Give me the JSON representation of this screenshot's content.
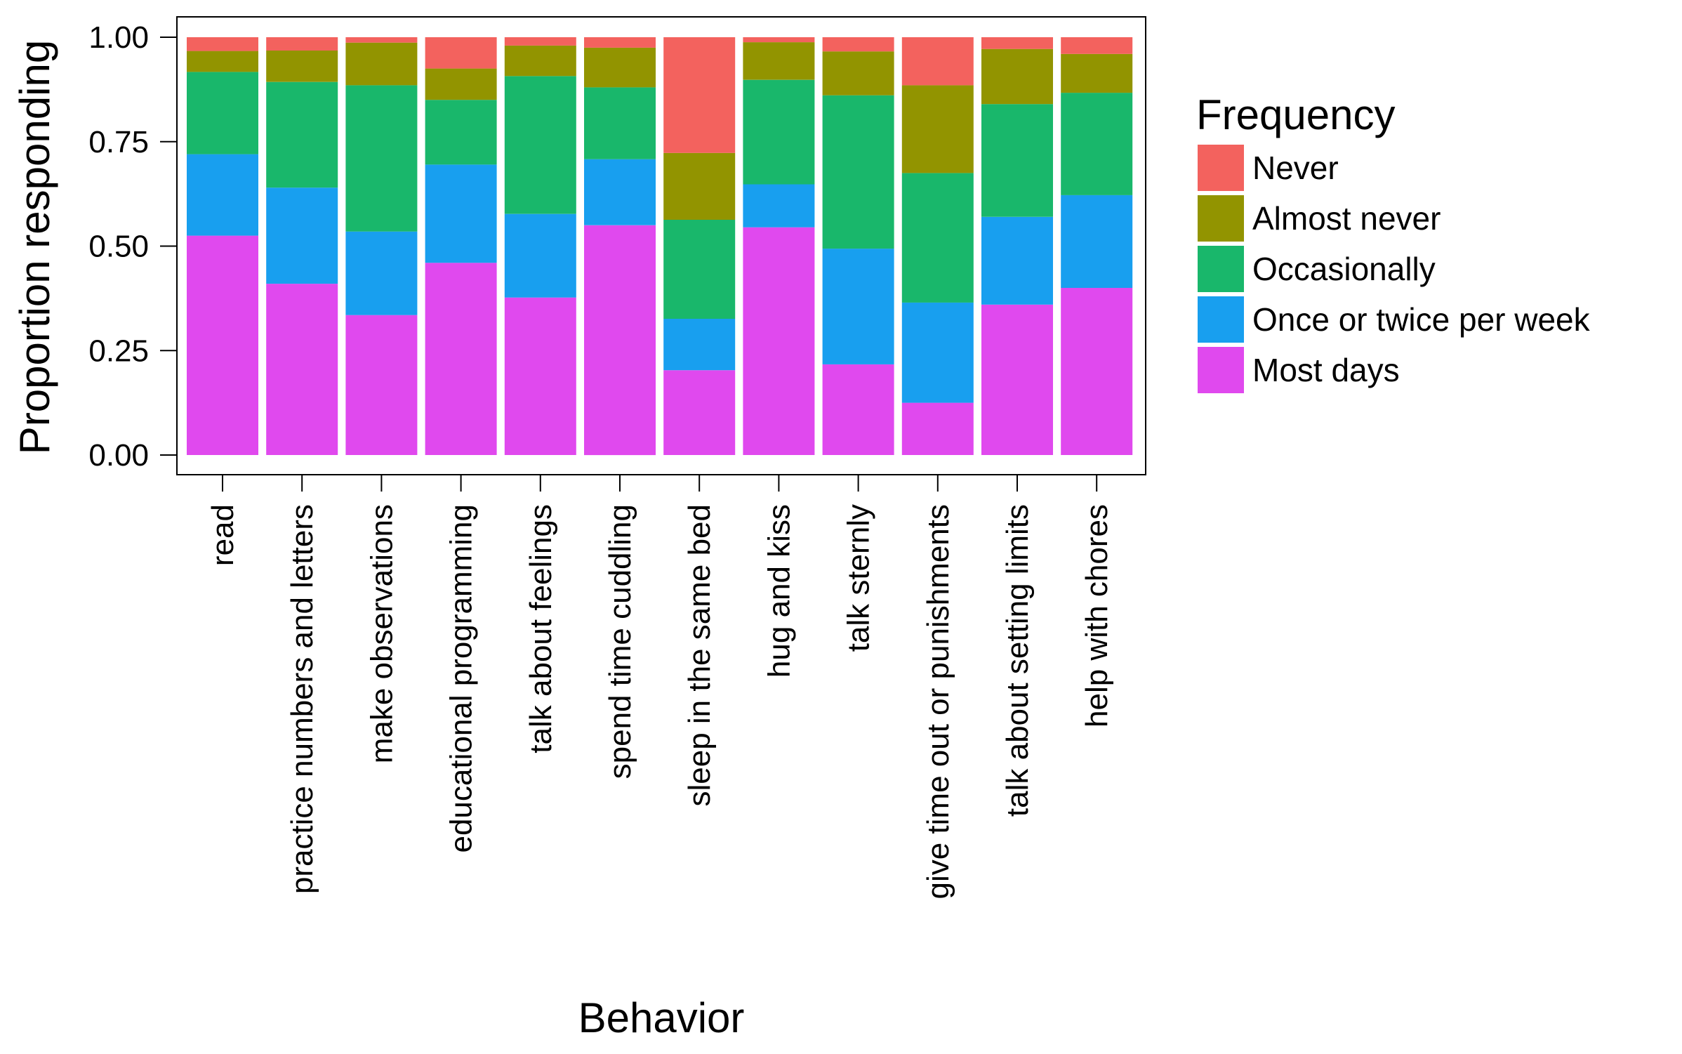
{
  "chart_data": {
    "type": "bar",
    "stacked": true,
    "normalized": true,
    "title": "",
    "xlabel": "Behavior",
    "ylabel": "Proportion responding",
    "ylim": [
      0,
      1
    ],
    "yticks": [
      "0.00",
      "0.25",
      "0.50",
      "0.75",
      "1.00"
    ],
    "ytick_values": [
      0,
      0.25,
      0.5,
      0.75,
      1.0
    ],
    "grid": false,
    "legend": {
      "title": "Frequency",
      "position": "right"
    },
    "categories": [
      "read",
      "practice numbers and letters",
      "make observations",
      "educational programming",
      "talk about feelings",
      "spend time cuddling",
      "sleep in the same bed",
      "hug and kiss",
      "talk sternly",
      "give time out or punishments",
      "talk about setting limits",
      "help with chores"
    ],
    "series": [
      {
        "name": "Most days",
        "color": "#E049EE",
        "values": [
          0.525,
          0.41,
          0.335,
          0.46,
          0.377,
          0.55,
          0.203,
          0.545,
          0.217,
          0.125,
          0.36,
          0.4
        ]
      },
      {
        "name": "Once or twice per week",
        "color": "#189FEF",
        "values": [
          0.195,
          0.23,
          0.2,
          0.235,
          0.2,
          0.158,
          0.123,
          0.103,
          0.277,
          0.24,
          0.21,
          0.222
        ]
      },
      {
        "name": "Occasionally",
        "color": "#19B76B",
        "values": [
          0.197,
          0.253,
          0.35,
          0.155,
          0.33,
          0.172,
          0.237,
          0.25,
          0.367,
          0.31,
          0.27,
          0.245
        ]
      },
      {
        "name": "Almost never",
        "color": "#929400",
        "values": [
          0.05,
          0.075,
          0.102,
          0.075,
          0.073,
          0.095,
          0.16,
          0.09,
          0.105,
          0.21,
          0.132,
          0.093
        ]
      },
      {
        "name": "Never",
        "color": "#F3625E",
        "values": [
          0.033,
          0.032,
          0.013,
          0.075,
          0.02,
          0.025,
          0.277,
          0.012,
          0.034,
          0.115,
          0.028,
          0.04
        ]
      }
    ],
    "legend_order": [
      "Never",
      "Almost never",
      "Occasionally",
      "Once or twice per week",
      "Most days"
    ]
  }
}
